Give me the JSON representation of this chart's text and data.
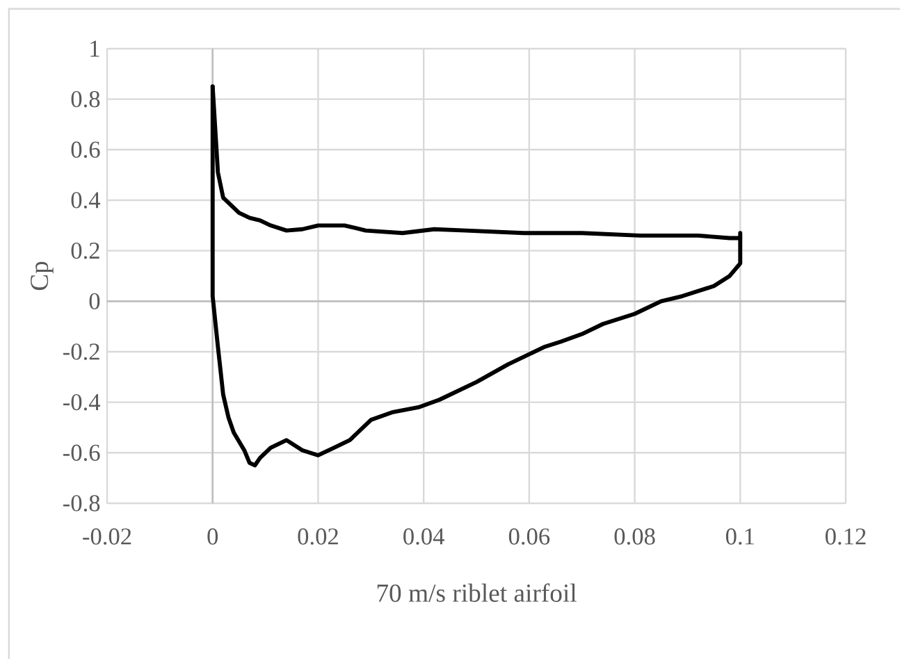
{
  "chart_data": {
    "type": "line",
    "xlabel": "70 m/s riblet airfoil",
    "ylabel": "Cp",
    "xlim": [
      -0.02,
      0.12
    ],
    "xticks": [
      -0.02,
      0,
      0.02,
      0.04,
      0.06,
      0.08,
      0.1,
      0.12
    ],
    "ylim": [
      -0.8,
      1
    ],
    "yticks": [
      -0.8,
      -0.6,
      -0.4,
      -0.2,
      0,
      0.2,
      0.4,
      0.6,
      0.8,
      1
    ],
    "grid": true,
    "marker": "none",
    "line_style": "solid",
    "series": [
      {
        "color": "#000000",
        "x": [
          0,
          0.001,
          0.002,
          0.003,
          0.005,
          0.007,
          0.009,
          0.011,
          0.014,
          0.017,
          0.02,
          0.025,
          0.029,
          0.036,
          0.042,
          0.048,
          0.059,
          0.07,
          0.081,
          0.092,
          0.098,
          0.1
        ],
        "values": [
          0.85,
          0.51,
          0.41,
          0.39,
          0.35,
          0.33,
          0.32,
          0.3,
          0.28,
          0.285,
          0.3,
          0.3,
          0.28,
          0.27,
          0.285,
          0.28,
          0.27,
          0.27,
          0.26,
          0.26,
          0.25,
          0.25
        ]
      },
      {
        "color": "#000000",
        "x": [
          0,
          0,
          0.001,
          0.002,
          0.003,
          0.004,
          0.006,
          0.007,
          0.008,
          0.009,
          0.011,
          0.014,
          0.017,
          0.02,
          0.023,
          0.026,
          0.03,
          0.034,
          0.039,
          0.043,
          0.05,
          0.056,
          0.063,
          0.066,
          0.07,
          0.074,
          0.08,
          0.085,
          0.089,
          0.095,
          0.098,
          0.1,
          0.1
        ],
        "values": [
          0.85,
          0.02,
          -0.18,
          -0.37,
          -0.46,
          -0.52,
          -0.59,
          -0.64,
          -0.65,
          -0.62,
          -0.58,
          -0.55,
          -0.59,
          -0.61,
          -0.58,
          -0.55,
          -0.47,
          -0.44,
          -0.42,
          -0.39,
          -0.32,
          -0.25,
          -0.18,
          -0.16,
          -0.13,
          -0.09,
          -0.05,
          0,
          0.02,
          0.06,
          0.1,
          0.15,
          0.27
        ]
      }
    ]
  }
}
